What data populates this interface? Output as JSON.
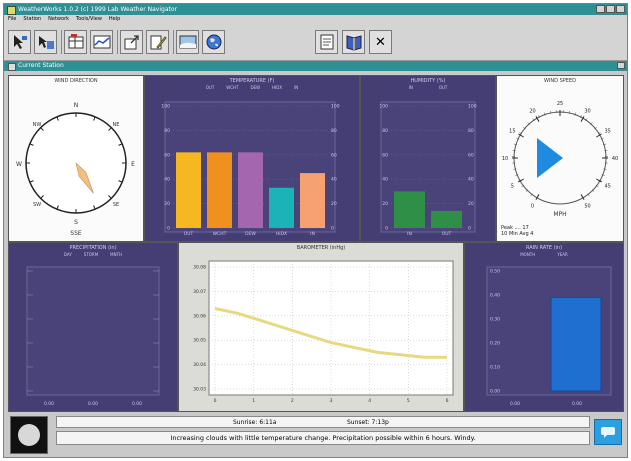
{
  "window": {
    "title": "WeatherWorks 1.0.2 (c) 1999 Lab Weather Navigator",
    "menu": [
      "File",
      "Station",
      "Network",
      "Tools/View",
      "Help"
    ]
  },
  "toolbar": {
    "left_icons": [
      "select-arrow-icon",
      "station-arrow-icon",
      "data-table-icon",
      "chart-icon",
      "export-icon",
      "pencil-icon",
      "satellite-icon",
      "globe-icon"
    ],
    "right_icons": [
      "document-icon",
      "help-book-icon",
      "close-x-icon"
    ],
    "close_glyph": "✕"
  },
  "subwindow": {
    "title": "Current Station"
  },
  "panels": {
    "wind_direction": {
      "title": "WIND DIRECTION",
      "north": "N",
      "east": "E",
      "south": "S",
      "west": "W",
      "nw": "NW",
      "ne": "NE",
      "sw": "SW",
      "se": "SE",
      "readout": "SSE",
      "direction_deg": 150
    },
    "temperature": {
      "title": "TEMPERATURE (F)",
      "labels": [
        "OUT",
        "WCHT",
        "DEW",
        "HIDX",
        "IN"
      ],
      "yticks": [
        "100",
        "80",
        "60",
        "40",
        "20",
        "0"
      ],
      "bars": [
        {
          "label": "OUT",
          "value": 0.62,
          "color": "#f5b820"
        },
        {
          "label": "WCHT",
          "value": 0.62,
          "color": "#f0901e"
        },
        {
          "label": "DEW",
          "value": 0.62,
          "color": "#a566b0"
        },
        {
          "label": "HIDX",
          "value": 0.33,
          "color": "#1ab4b8"
        },
        {
          "label": "IN",
          "value": 0.45,
          "color": "#f7a070"
        }
      ]
    },
    "humidity": {
      "title": "HUMIDITY (%)",
      "labels": [
        "IN",
        "OUT"
      ],
      "yticks": [
        "100",
        "80",
        "60",
        "40",
        "20",
        "0"
      ],
      "bars": [
        {
          "label": "IN",
          "value": 0.3,
          "color": "#2f8f46"
        },
        {
          "label": "OUT",
          "value": 0.14,
          "color": "#2f8f46"
        }
      ]
    },
    "wind_speed": {
      "title": "WIND SPEED",
      "dial_ticks": [
        "0",
        "5",
        "10",
        "15",
        "20",
        "25",
        "30",
        "35",
        "40",
        "45",
        "50"
      ],
      "readout": "MPH",
      "peak_label": "Peak",
      "peak_value": "17",
      "avg_label": "10 Min Avg",
      "avg_value": "4"
    },
    "precipitation": {
      "title": "PRECIPITATION (in)",
      "labels": [
        "DAY",
        "STORM",
        "MNTH"
      ],
      "footer": [
        "0.00",
        "0.00",
        "0.00"
      ]
    },
    "barometer": {
      "title": "BAROMETER (inHg)",
      "yticks": [
        "30.08",
        "30.07",
        "30.06",
        "30.05",
        "30.04",
        "30.03"
      ],
      "xticks": [
        "0",
        "1",
        "2",
        "3",
        "4",
        "5",
        "6"
      ],
      "series": [
        30.063,
        30.061,
        30.058,
        30.055,
        30.052,
        30.049,
        30.047,
        30.045,
        30.044,
        30.043,
        30.043
      ]
    },
    "rain_rate": {
      "title": "RAIN RATE (in)",
      "labels": [
        "MONTH",
        "YEAR"
      ],
      "yticks": [
        "0.50",
        "0.40",
        "0.30",
        "0.20",
        "0.10",
        "0.00"
      ],
      "footer": [
        "0.00",
        "0.00"
      ],
      "bar_value": 0.78
    }
  },
  "status": {
    "sunrise_label": "Sunrise:",
    "sunrise": "6:11a",
    "sunset_label": "Sunset:",
    "sunset": "7:13p",
    "forecast": "Increasing clouds with little temperature change.  Precipitation possible within 6 hours. Windy."
  }
}
